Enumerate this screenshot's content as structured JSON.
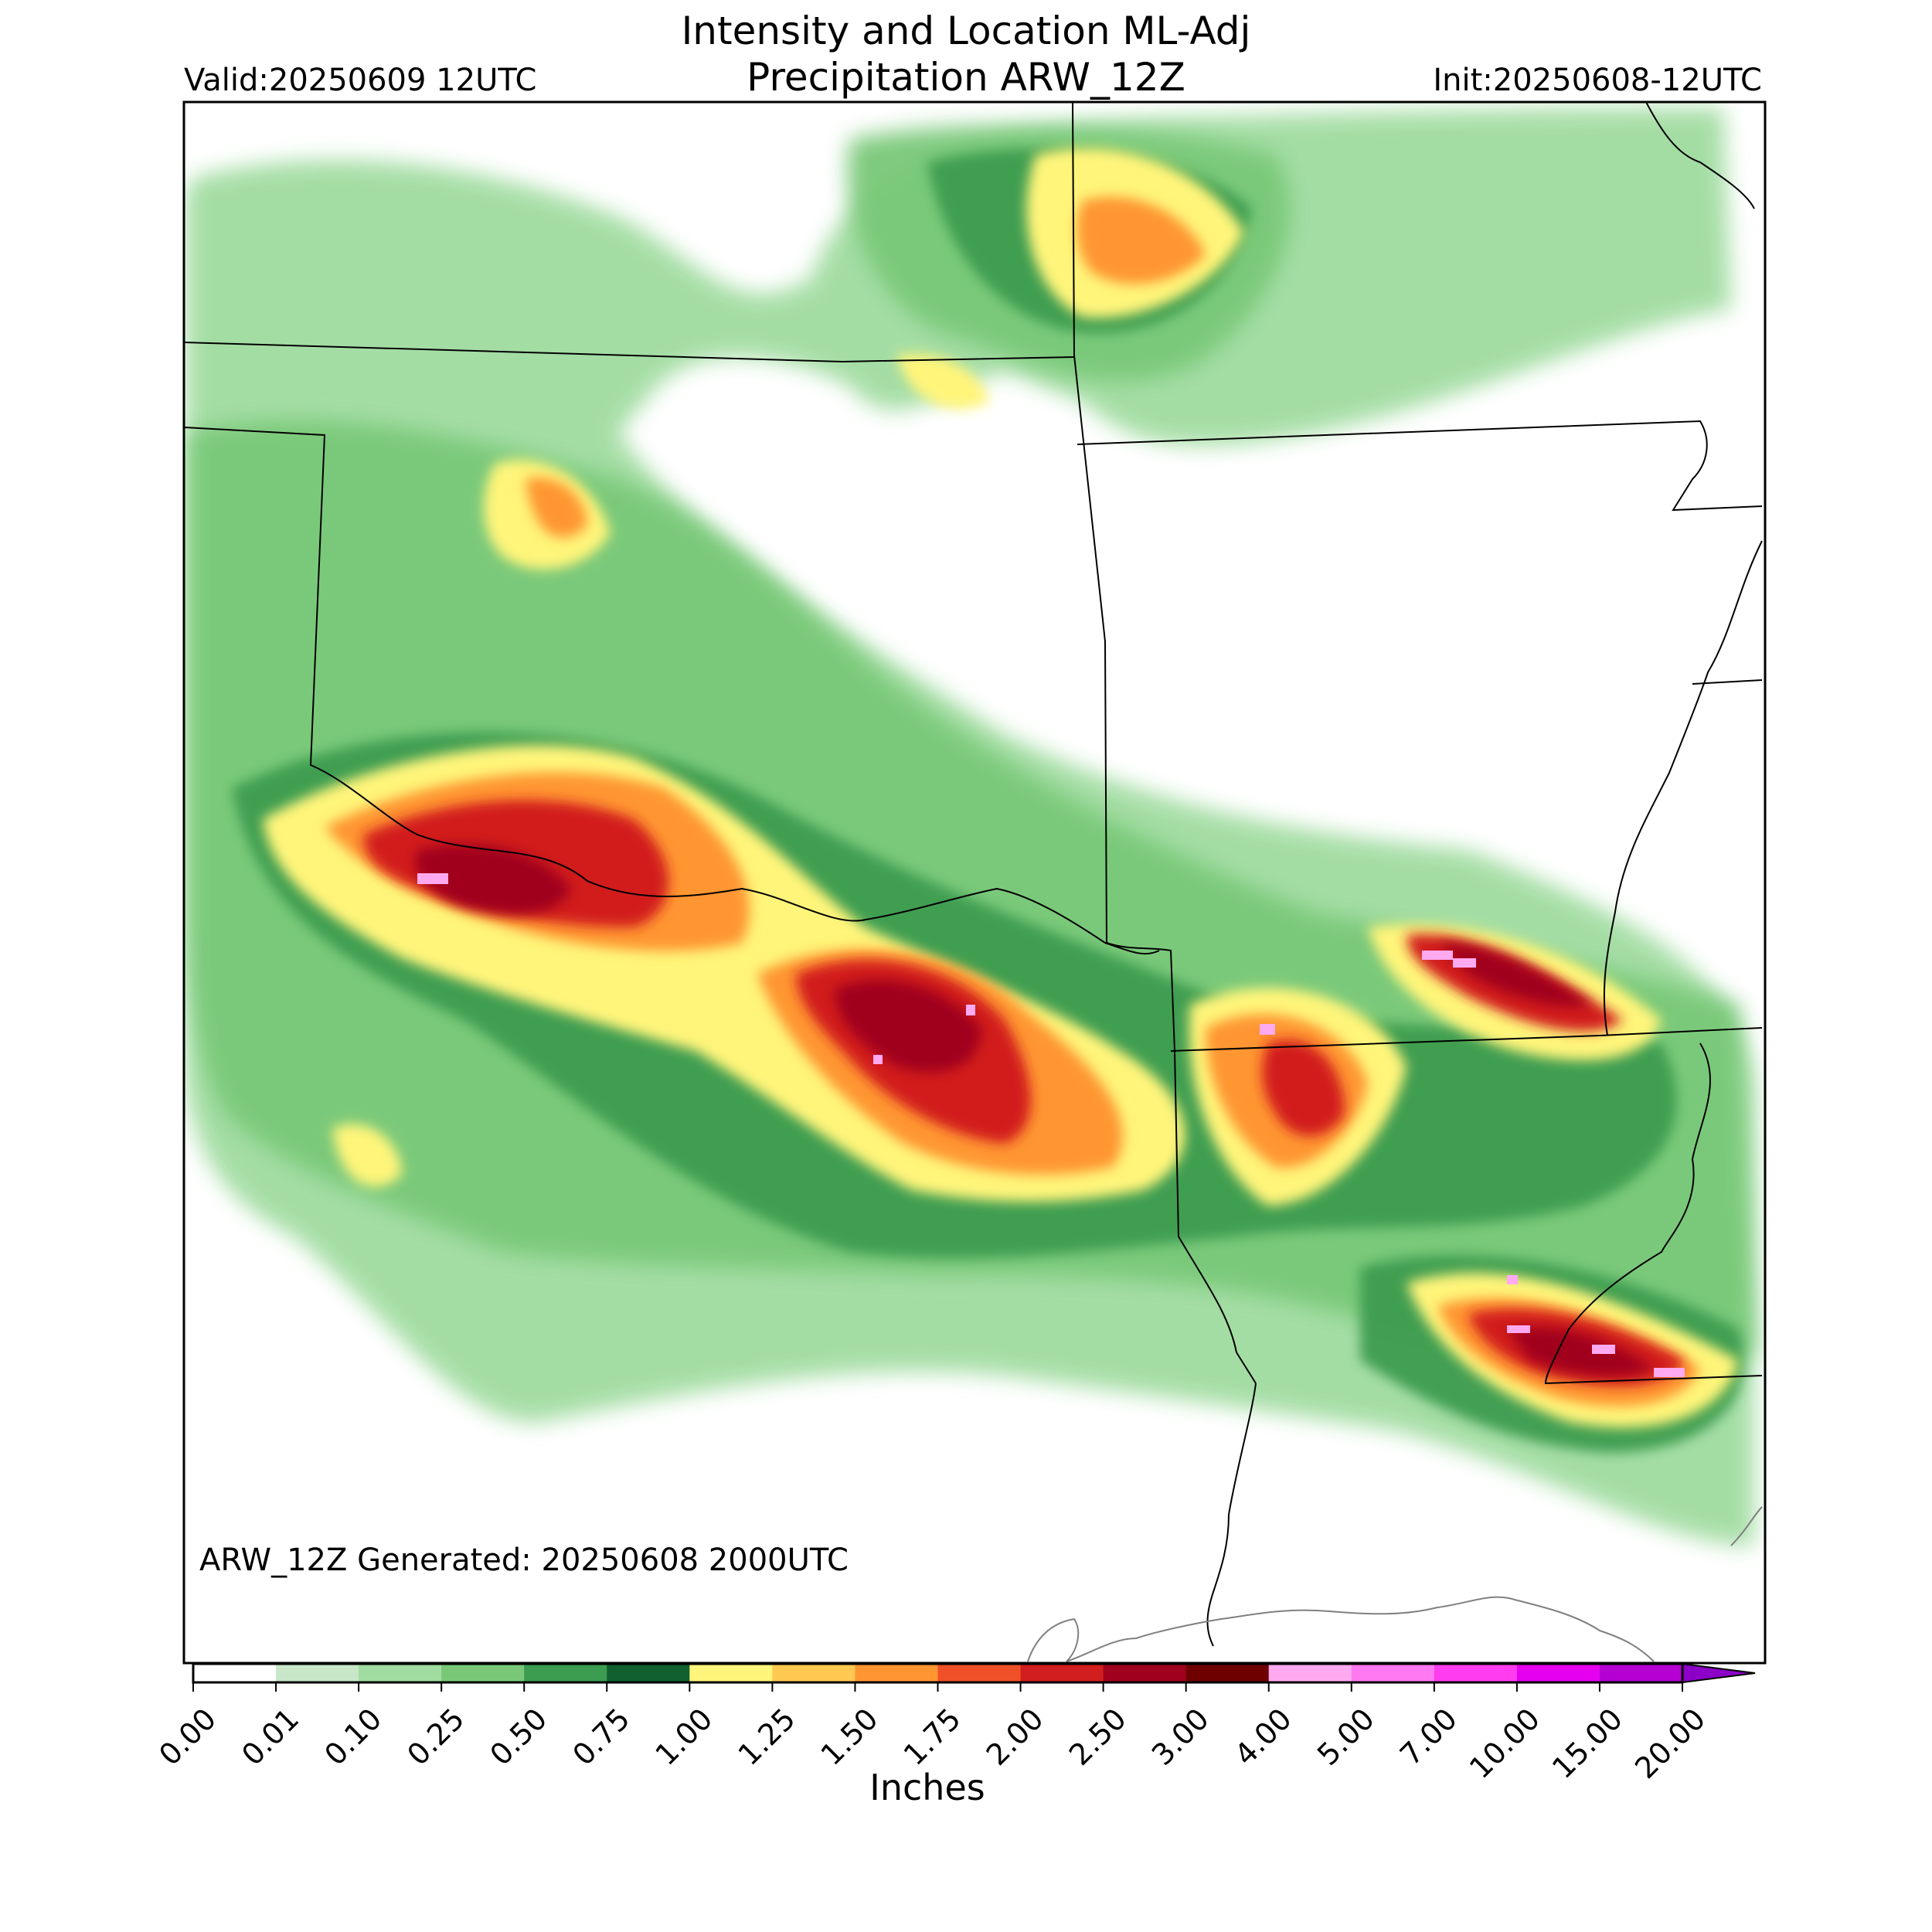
{
  "header": {
    "title_line1": "Intensity and Location ML-Adj",
    "title_line2": "Precipitation ARW_12Z",
    "valid": "Valid:20250609 12UTC",
    "init": "Init:20250608-12UTC"
  },
  "map": {
    "generated_text": "ARW_12Z Generated: 20250608 2000UTC",
    "region": "southern plains / lower Mississippi valley",
    "state_borders": "black",
    "coastline": "gray"
  },
  "colorbar": {
    "label": "Inches",
    "ticks": [
      "0.00",
      "0.01",
      "0.10",
      "0.25",
      "0.50",
      "0.75",
      "1.00",
      "1.25",
      "1.50",
      "1.75",
      "2.00",
      "2.50",
      "3.00",
      "4.00",
      "5.00",
      "7.00",
      "10.00",
      "15.00",
      "20.00"
    ],
    "colors": [
      "#ffffff",
      "#c8e6c8",
      "#a0dca0",
      "#78c878",
      "#3c9c50",
      "#106030",
      "#fff57a",
      "#ffc850",
      "#ff9632",
      "#f05028",
      "#d21e1e",
      "#a0001e",
      "#6e0000",
      "#ffaaf0",
      "#ff78f0",
      "#ff3cf0",
      "#e600f0",
      "#b400d2",
      "#8c00c8"
    ],
    "extend": "max"
  }
}
